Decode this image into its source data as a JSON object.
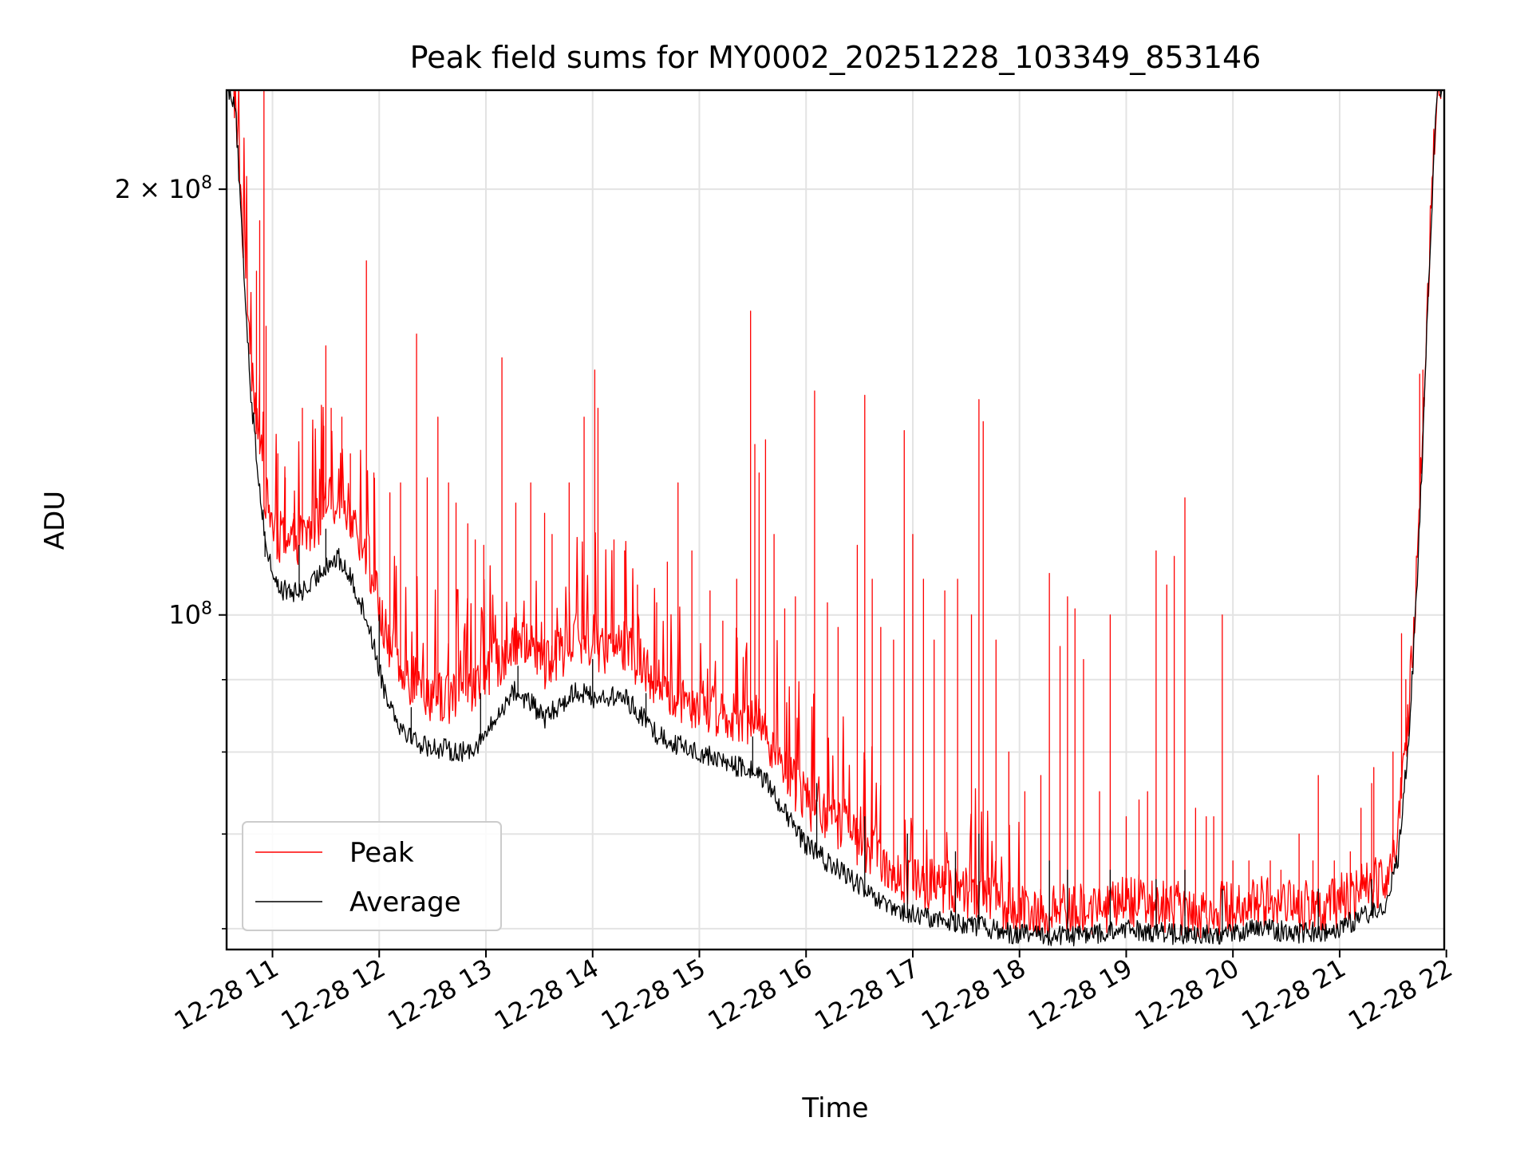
{
  "chart_data": {
    "type": "line",
    "title": "Peak field sums for MY0002_20251228_103349_853146",
    "xlabel": "Time",
    "ylabel": "ADU",
    "x_unit": "hours since 12-28 00:00",
    "xlim": [
      10.57,
      21.98
    ],
    "ylim": [
      58000000,
      235000000
    ],
    "yscale": "log",
    "grid": true,
    "legend_position": "lower-left",
    "x_ticks": [
      {
        "value": 11,
        "label": "12-28 11"
      },
      {
        "value": 12,
        "label": "12-28 12"
      },
      {
        "value": 13,
        "label": "12-28 13"
      },
      {
        "value": 14,
        "label": "12-28 14"
      },
      {
        "value": 15,
        "label": "12-28 15"
      },
      {
        "value": 16,
        "label": "12-28 16"
      },
      {
        "value": 17,
        "label": "12-28 17"
      },
      {
        "value": 18,
        "label": "12-28 18"
      },
      {
        "value": 19,
        "label": "12-28 19"
      },
      {
        "value": 20,
        "label": "12-28 20"
      },
      {
        "value": 21,
        "label": "12-28 21"
      },
      {
        "value": 22,
        "label": "12-28 22"
      }
    ],
    "y_major_ticks": [
      {
        "value": 100000000,
        "base": "10",
        "exp": "8",
        "coef": ""
      },
      {
        "value": 200000000,
        "base": "10",
        "exp": "8",
        "coef": "2 × "
      }
    ],
    "y_minor_ticks": [
      60000000,
      70000000,
      80000000,
      90000000
    ],
    "series": [
      {
        "name": "Peak",
        "color": "#ff0000",
        "baseline": [
          [
            10.57,
            235000000
          ],
          [
            10.65,
            230000000
          ],
          [
            10.72,
            185000000
          ],
          [
            10.8,
            150000000
          ],
          [
            10.88,
            130000000
          ],
          [
            10.95,
            118000000
          ],
          [
            11.05,
            112000000
          ],
          [
            11.2,
            111000000
          ],
          [
            11.35,
            113000000
          ],
          [
            11.5,
            118000000
          ],
          [
            11.62,
            120000000
          ],
          [
            11.75,
            116000000
          ],
          [
            11.9,
            108000000
          ],
          [
            12.05,
            96000000
          ],
          [
            12.2,
            90000000
          ],
          [
            12.4,
            87000000
          ],
          [
            12.6,
            86500000
          ],
          [
            12.8,
            86500000
          ],
          [
            12.95,
            88000000
          ],
          [
            13.1,
            91000000
          ],
          [
            13.25,
            95000000
          ],
          [
            13.4,
            94000000
          ],
          [
            13.55,
            91000000
          ],
          [
            13.7,
            93000000
          ],
          [
            13.85,
            95000000
          ],
          [
            14.0,
            94000000
          ],
          [
            14.15,
            93500000
          ],
          [
            14.3,
            93500000
          ],
          [
            14.45,
            91000000
          ],
          [
            14.6,
            88500000
          ],
          [
            14.8,
            86500000
          ],
          [
            15.0,
            85500000
          ],
          [
            15.2,
            84500000
          ],
          [
            15.4,
            83500000
          ],
          [
            15.55,
            83000000
          ],
          [
            15.7,
            80000000
          ],
          [
            15.85,
            76000000
          ],
          [
            16.0,
            73000000
          ],
          [
            16.2,
            71000000
          ],
          [
            16.4,
            69500000
          ],
          [
            16.6,
            67500000
          ],
          [
            16.8,
            65000000
          ],
          [
            17.0,
            64000000
          ],
          [
            17.3,
            63500000
          ],
          [
            17.6,
            62500000
          ],
          [
            17.9,
            61500000
          ],
          [
            18.2,
            61000000
          ],
          [
            18.5,
            61000000
          ],
          [
            18.8,
            61500000
          ],
          [
            19.1,
            62000000
          ],
          [
            19.4,
            61500000
          ],
          [
            19.7,
            61000000
          ],
          [
            20.0,
            61500000
          ],
          [
            20.3,
            62000000
          ],
          [
            20.6,
            61500000
          ],
          [
            20.9,
            61500000
          ],
          [
            21.1,
            62500000
          ],
          [
            21.3,
            63500000
          ],
          [
            21.45,
            65000000
          ],
          [
            21.55,
            70000000
          ],
          [
            21.65,
            85000000
          ],
          [
            21.72,
            105000000
          ],
          [
            21.78,
            135000000
          ],
          [
            21.83,
            170000000
          ],
          [
            21.88,
            210000000
          ],
          [
            21.92,
            235000000
          ],
          [
            21.98,
            235000000
          ]
        ],
        "spikes": [
          [
            10.85,
            175000000
          ],
          [
            10.88,
            190000000
          ],
          [
            10.92,
            235000000
          ],
          [
            10.94,
            160000000
          ],
          [
            11.05,
            130000000
          ],
          [
            11.12,
            125000000
          ],
          [
            11.2,
            118000000
          ],
          [
            11.28,
            140000000
          ],
          [
            11.4,
            133000000
          ],
          [
            11.48,
            136000000
          ],
          [
            11.5,
            155000000
          ],
          [
            11.55,
            140000000
          ],
          [
            11.65,
            138000000
          ],
          [
            11.73,
            130000000
          ],
          [
            11.88,
            178000000
          ],
          [
            11.95,
            126000000
          ],
          [
            12.1,
            122000000
          ],
          [
            12.2,
            124000000
          ],
          [
            12.35,
            158000000
          ],
          [
            12.45,
            125000000
          ],
          [
            12.55,
            138000000
          ],
          [
            12.65,
            124000000
          ],
          [
            12.72,
            120000000
          ],
          [
            12.83,
            116000000
          ],
          [
            12.9,
            113000000
          ],
          [
            12.98,
            112000000
          ],
          [
            13.15,
            152000000
          ],
          [
            13.28,
            120000000
          ],
          [
            13.42,
            124000000
          ],
          [
            13.55,
            118000000
          ],
          [
            13.62,
            114000000
          ],
          [
            13.78,
            124000000
          ],
          [
            13.92,
            138000000
          ],
          [
            14.02,
            149000000
          ],
          [
            14.05,
            140000000
          ],
          [
            14.2,
            113000000
          ],
          [
            14.3,
            111000000
          ],
          [
            14.42,
            105000000
          ],
          [
            14.6,
            102000000
          ],
          [
            14.7,
            109000000
          ],
          [
            14.8,
            124000000
          ],
          [
            14.93,
            111000000
          ],
          [
            15.1,
            104000000
          ],
          [
            15.22,
            99000000
          ],
          [
            15.35,
            106000000
          ],
          [
            15.48,
            164000000
          ],
          [
            15.52,
            132000000
          ],
          [
            15.56,
            126000000
          ],
          [
            15.62,
            133000000
          ],
          [
            15.7,
            114000000
          ],
          [
            15.8,
            101000000
          ],
          [
            15.9,
            103000000
          ],
          [
            16.08,
            144000000
          ],
          [
            16.2,
            102000000
          ],
          [
            16.3,
            98000000
          ],
          [
            16.48,
            112000000
          ],
          [
            16.55,
            143000000
          ],
          [
            16.62,
            106000000
          ],
          [
            16.7,
            98000000
          ],
          [
            16.82,
            96000000
          ],
          [
            16.92,
            135000000
          ],
          [
            17.0,
            114000000
          ],
          [
            17.1,
            106000000
          ],
          [
            17.2,
            96000000
          ],
          [
            17.3,
            104000000
          ],
          [
            17.42,
            106000000
          ],
          [
            17.55,
            100000000
          ],
          [
            17.62,
            142000000
          ],
          [
            17.66,
            137000000
          ],
          [
            17.78,
            96000000
          ],
          [
            17.9,
            80000000
          ],
          [
            18.05,
            75000000
          ],
          [
            18.2,
            77000000
          ],
          [
            18.28,
            107000000
          ],
          [
            18.38,
            95000000
          ],
          [
            18.45,
            103000000
          ],
          [
            18.52,
            101000000
          ],
          [
            18.6,
            93000000
          ],
          [
            18.75,
            75000000
          ],
          [
            18.85,
            100000000
          ],
          [
            19.0,
            72000000
          ],
          [
            19.12,
            74000000
          ],
          [
            19.2,
            75000000
          ],
          [
            19.28,
            111000000
          ],
          [
            19.38,
            105000000
          ],
          [
            19.45,
            110000000
          ],
          [
            19.55,
            121000000
          ],
          [
            19.65,
            73000000
          ],
          [
            19.75,
            72000000
          ],
          [
            19.82,
            72000000
          ],
          [
            19.9,
            100000000
          ],
          [
            20.0,
            67000000
          ],
          [
            20.15,
            67000000
          ],
          [
            20.35,
            67000000
          ],
          [
            20.45,
            66000000
          ],
          [
            20.62,
            70000000
          ],
          [
            20.75,
            67000000
          ],
          [
            20.8,
            77000000
          ],
          [
            20.95,
            67000000
          ],
          [
            21.1,
            68000000
          ],
          [
            21.2,
            73000000
          ],
          [
            21.3,
            76000000
          ],
          [
            21.32,
            78000000
          ],
          [
            21.5,
            80000000
          ],
          [
            21.58,
            97000000
          ],
          [
            21.62,
            90000000
          ],
          [
            21.75,
            148000000
          ],
          [
            21.78,
            149000000
          ]
        ]
      },
      {
        "name": "Average",
        "color": "#000000",
        "baseline": [
          [
            10.57,
            235000000
          ],
          [
            10.65,
            230000000
          ],
          [
            10.72,
            180000000
          ],
          [
            10.8,
            142000000
          ],
          [
            10.88,
            122000000
          ],
          [
            10.95,
            110000000
          ],
          [
            11.05,
            104000000
          ],
          [
            11.2,
            103000000
          ],
          [
            11.35,
            104000000
          ],
          [
            11.5,
            108000000
          ],
          [
            11.62,
            109000000
          ],
          [
            11.75,
            105000000
          ],
          [
            11.9,
            98000000
          ],
          [
            12.05,
            88000000
          ],
          [
            12.2,
            83000000
          ],
          [
            12.4,
            80500000
          ],
          [
            12.6,
            80000000
          ],
          [
            12.8,
            79500000
          ],
          [
            12.95,
            81000000
          ],
          [
            13.1,
            84000000
          ],
          [
            13.25,
            88000000
          ],
          [
            13.4,
            86500000
          ],
          [
            13.55,
            84000000
          ],
          [
            13.7,
            86000000
          ],
          [
            13.85,
            88000000
          ],
          [
            14.0,
            87000000
          ],
          [
            14.15,
            87000000
          ],
          [
            14.3,
            87000000
          ],
          [
            14.45,
            84500000
          ],
          [
            14.6,
            82000000
          ],
          [
            14.8,
            80500000
          ],
          [
            15.0,
            79500000
          ],
          [
            15.2,
            78500000
          ],
          [
            15.4,
            77500000
          ],
          [
            15.55,
            77000000
          ],
          [
            15.7,
            74500000
          ],
          [
            15.85,
            71000000
          ],
          [
            16.0,
            68500000
          ],
          [
            16.2,
            66500000
          ],
          [
            16.4,
            65000000
          ],
          [
            16.6,
            63000000
          ],
          [
            16.8,
            61500000
          ],
          [
            17.0,
            61000000
          ],
          [
            17.3,
            60500000
          ],
          [
            17.6,
            60000000
          ],
          [
            17.9,
            59300000
          ],
          [
            18.2,
            59000000
          ],
          [
            18.5,
            59000000
          ],
          [
            18.8,
            59300000
          ],
          [
            19.1,
            59600000
          ],
          [
            19.4,
            59200000
          ],
          [
            19.7,
            59000000
          ],
          [
            20.0,
            59300000
          ],
          [
            20.3,
            59700000
          ],
          [
            20.6,
            59300000
          ],
          [
            20.9,
            59500000
          ],
          [
            21.1,
            60300000
          ],
          [
            21.3,
            61300000
          ],
          [
            21.45,
            62500000
          ],
          [
            21.55,
            67000000
          ],
          [
            21.65,
            82000000
          ],
          [
            21.72,
            102000000
          ],
          [
            21.78,
            132000000
          ],
          [
            21.83,
            168000000
          ],
          [
            21.88,
            208000000
          ],
          [
            21.92,
            235000000
          ],
          [
            21.98,
            235000000
          ]
        ],
        "spikes": [
          [
            10.93,
            110000000
          ],
          [
            11.25,
            112000000
          ],
          [
            11.5,
            115000000
          ],
          [
            12.0,
            100000000
          ],
          [
            12.3,
            86000000
          ],
          [
            12.95,
            88000000
          ],
          [
            13.3,
            92000000
          ],
          [
            14.0,
            93000000
          ],
          [
            14.5,
            88000000
          ],
          [
            15.5,
            82000000
          ],
          [
            16.1,
            76000000
          ],
          [
            16.55,
            72000000
          ],
          [
            16.95,
            70000000
          ],
          [
            17.4,
            68000000
          ],
          [
            17.62,
            70000000
          ],
          [
            18.28,
            67000000
          ],
          [
            18.45,
            66000000
          ],
          [
            18.85,
            66000000
          ],
          [
            19.28,
            65000000
          ],
          [
            19.55,
            66000000
          ],
          [
            19.9,
            64000000
          ],
          [
            20.8,
            64000000
          ],
          [
            21.3,
            65000000
          ]
        ]
      }
    ]
  }
}
